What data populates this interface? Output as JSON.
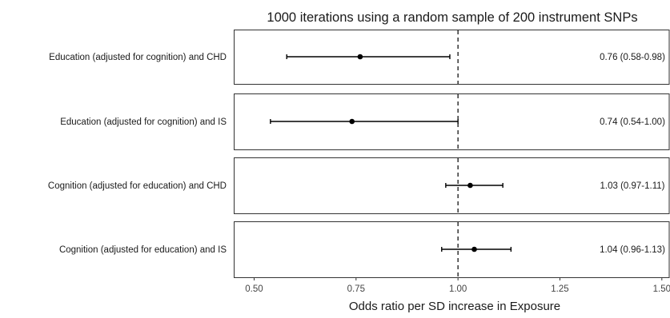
{
  "chart_data": {
    "type": "forest",
    "title": "1000 iterations using a random sample of 200 instrument SNPs",
    "xlabel": "Odds ratio per SD increase in Exposure",
    "xlim": [
      0.45,
      1.52
    ],
    "xticks": [
      0.5,
      0.75,
      1.0,
      1.25,
      1.5
    ],
    "xtick_labels": [
      "0.50",
      "0.75",
      "1.00",
      "1.25",
      "1.50"
    ],
    "reference_line": 1.0,
    "rows": [
      {
        "label": "Education (adjusted for cognition) and CHD",
        "estimate": 0.76,
        "lower": 0.58,
        "upper": 0.98,
        "text": "0.76 (0.58-0.98)"
      },
      {
        "label": "Education (adjusted for cognition) and IS",
        "estimate": 0.74,
        "lower": 0.54,
        "upper": 1.0,
        "text": "0.74 (0.54-1.00)"
      },
      {
        "label": "Cognition (adjusted for education) and CHD",
        "estimate": 1.03,
        "lower": 0.97,
        "upper": 1.11,
        "text": "1.03 (0.97-1.11)"
      },
      {
        "label": "Cognition (adjusted for education) and IS",
        "estimate": 1.04,
        "lower": 0.96,
        "upper": 1.13,
        "text": "1.04 (0.96-1.13)"
      }
    ]
  }
}
